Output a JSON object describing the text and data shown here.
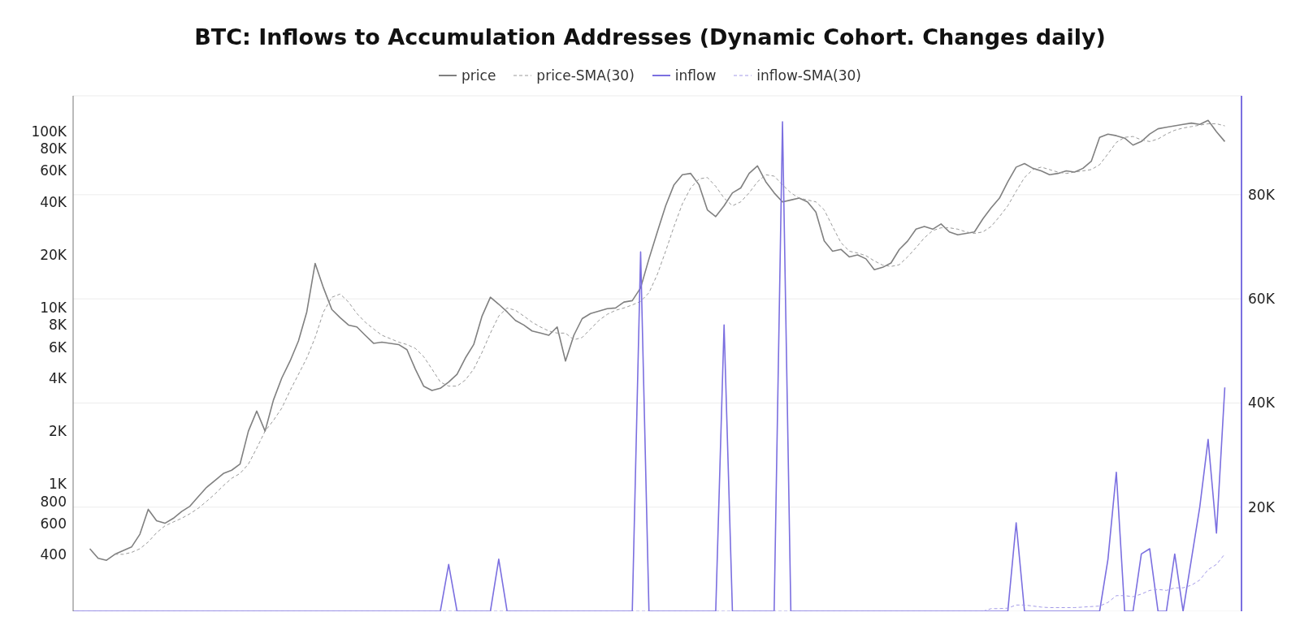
{
  "chart_data": {
    "type": "line",
    "title": "BTC: Inflows to Accumulation Addresses (Dynamic Cohort. Changes daily)",
    "categories": [
      null,
      null,
      null,
      null,
      null,
      null,
      null,
      null,
      null,
      null,
      null,
      null,
      null,
      null,
      null,
      null,
      null,
      null,
      null,
      null,
      null,
      null,
      null,
      null,
      null,
      null,
      null,
      null,
      null,
      null,
      null,
      null,
      null,
      null,
      null,
      null,
      null,
      null,
      null,
      null,
      null,
      null,
      null,
      null,
      null,
      null,
      null,
      null,
      null,
      null,
      null,
      null,
      null,
      null,
      null,
      null,
      null,
      null,
      null,
      null,
      null,
      null,
      null,
      null,
      null,
      null,
      null,
      null,
      null,
      null,
      null,
      null,
      null,
      null,
      null,
      null,
      null,
      null,
      null,
      null,
      null,
      null,
      null,
      null,
      null,
      null,
      null,
      null,
      null,
      null,
      null,
      null,
      null,
      null,
      null,
      null,
      null,
      null,
      null,
      null,
      null,
      null,
      null,
      null,
      null,
      null,
      null,
      null,
      null,
      null,
      null,
      null,
      null,
      null,
      null,
      null,
      null,
      null,
      null,
      null,
      null,
      null,
      null,
      null,
      null,
      null,
      null,
      null,
      null,
      null,
      null,
      null,
      null,
      null,
      null,
      null,
      null,
      null,
      null,
      null,
      null
    ],
    "series": [
      {
        "name": "price",
        "color": "#808080",
        "line_style": "solid",
        "values": [
          null,
          null,
          430,
          380,
          370,
          400,
          420,
          440,
          520,
          720,
          620,
          600,
          640,
          700,
          750,
          850,
          960,
          1050,
          1150,
          1200,
          1300,
          2000,
          2600,
          2000,
          3000,
          4000,
          5000,
          6500,
          9500,
          17900,
          13000,
          9800,
          8800,
          8000,
          7800,
          7000,
          6300,
          6400,
          6300,
          6200,
          5800,
          4500,
          3600,
          3400,
          3500,
          3800,
          4200,
          5200,
          6200,
          9000,
          11500,
          10500,
          9500,
          8500,
          8000,
          7400,
          7200,
          7000,
          7800,
          5000,
          7000,
          8700,
          9300,
          9600,
          9900,
          10000,
          10800,
          11000,
          13000,
          19000,
          27000,
          38000,
          50000,
          57000,
          58000,
          50000,
          36000,
          33000,
          38000,
          45000,
          48000,
          58000,
          64000,
          52000,
          45000,
          40000,
          41000,
          42000,
          40000,
          35000,
          24000,
          21000,
          21500,
          19500,
          20000,
          19000,
          16500,
          17000,
          18000,
          21500,
          24000,
          28000,
          29000,
          28000,
          30000,
          27000,
          26000,
          26500,
          27000,
          32000,
          37000,
          42000,
          52000,
          63000,
          66000,
          62000,
          60000,
          57000,
          58000,
          60000,
          59000,
          62000,
          68000,
          93000,
          97000,
          95000,
          92000,
          84000,
          88000,
          97000,
          104000,
          106000,
          108000,
          110000,
          112000,
          110000,
          116000,
          100000,
          88000,
          null,
          null
        ]
      },
      {
        "name": "price-SMA(30)",
        "color": "#9a9a9a",
        "line_style": "dashed",
        "values": [
          null,
          null,
          null,
          null,
          null,
          400,
          400,
          410,
          430,
          470,
          530,
          580,
          610,
          640,
          680,
          730,
          800,
          880,
          980,
          1080,
          1150,
          1300,
          1600,
          2000,
          2300,
          2700,
          3400,
          4200,
          5200,
          6800,
          9500,
          11500,
          12000,
          10800,
          9300,
          8300,
          7600,
          7000,
          6700,
          6400,
          6200,
          5900,
          5300,
          4500,
          3800,
          3600,
          3600,
          3900,
          4500,
          5600,
          7200,
          9000,
          10000,
          9700,
          9000,
          8300,
          7800,
          7400,
          7200,
          7200,
          6600,
          6800,
          7600,
          8500,
          9200,
          9700,
          10000,
          10400,
          10900,
          12200,
          15500,
          21000,
          29000,
          39000,
          48000,
          54000,
          55000,
          49000,
          42000,
          38000,
          40000,
          45000,
          52000,
          57000,
          56000,
          50000,
          45000,
          42000,
          41000,
          40000,
          36000,
          29000,
          23500,
          21000,
          20500,
          19800,
          18500,
          17500,
          17200,
          17600,
          19500,
          22000,
          25000,
          27500,
          28500,
          28500,
          28000,
          27000,
          26500,
          27000,
          29000,
          33000,
          38000,
          46000,
          55000,
          61000,
          63000,
          61000,
          59000,
          58000,
          59000,
          60000,
          61000,
          65000,
          75000,
          87000,
          93000,
          94000,
          90000,
          88000,
          91000,
          97000,
          102000,
          105000,
          107000,
          109000,
          111000,
          111000,
          108000,
          null,
          null
        ]
      },
      {
        "name": "inflow",
        "color": "#7b6fe0",
        "line_style": "solid",
        "axis": "y2",
        "values": [
          0,
          0,
          0,
          0,
          0,
          0,
          0,
          0,
          0,
          0,
          0,
          0,
          0,
          0,
          0,
          0,
          0,
          0,
          0,
          0,
          0,
          0,
          0,
          0,
          0,
          0,
          0,
          0,
          0,
          0,
          0,
          0,
          0,
          0,
          0,
          0,
          0,
          0,
          0,
          0,
          0,
          0,
          0,
          0,
          0,
          9000,
          0,
          0,
          0,
          0,
          0,
          10000,
          0,
          0,
          0,
          0,
          0,
          0,
          0,
          0,
          0,
          0,
          0,
          0,
          0,
          0,
          0,
          0,
          69000,
          0,
          0,
          0,
          0,
          0,
          0,
          0,
          0,
          0,
          55000,
          0,
          0,
          0,
          0,
          0,
          0,
          94000,
          0,
          0,
          0,
          0,
          0,
          0,
          0,
          0,
          0,
          0,
          0,
          0,
          0,
          0,
          0,
          0,
          0,
          0,
          0,
          0,
          0,
          0,
          0,
          0,
          0,
          0,
          0,
          17000,
          0,
          0,
          0,
          0,
          0,
          0,
          0,
          0,
          0,
          0,
          10000,
          26700,
          0,
          0,
          11000,
          12000,
          0,
          0,
          11000,
          0,
          10000,
          20000,
          33000,
          15000,
          43000,
          null,
          null
        ]
      },
      {
        "name": "inflow-SMA(30)",
        "color": "#a39ae8",
        "line_style": "dashed",
        "axis": "y2",
        "values": [
          0,
          0,
          0,
          0,
          0,
          0,
          0,
          0,
          0,
          0,
          0,
          0,
          0,
          0,
          0,
          0,
          0,
          0,
          0,
          0,
          0,
          0,
          0,
          0,
          0,
          0,
          0,
          0,
          0,
          0,
          0,
          0,
          0,
          0,
          0,
          0,
          0,
          0,
          0,
          0,
          0,
          0,
          0,
          0,
          0,
          0,
          0,
          0,
          0,
          0,
          0,
          0,
          0,
          0,
          0,
          0,
          0,
          0,
          0,
          0,
          0,
          0,
          0,
          0,
          0,
          0,
          0,
          0,
          0,
          0,
          0,
          0,
          0,
          0,
          0,
          0,
          0,
          0,
          0,
          0,
          0,
          0,
          0,
          0,
          0,
          0,
          0,
          0,
          0,
          0,
          0,
          0,
          0,
          0,
          0,
          0,
          0,
          0,
          0,
          0,
          0,
          0,
          0,
          0,
          0,
          0,
          0,
          0,
          0,
          0,
          500,
          500,
          600,
          1200,
          1200,
          1000,
          800,
          700,
          700,
          700,
          700,
          800,
          900,
          1000,
          1700,
          3000,
          3000,
          2800,
          3300,
          4000,
          4200,
          4000,
          4500,
          4500,
          5000,
          6000,
          8000,
          9000,
          11000,
          null,
          null
        ]
      }
    ],
    "log": "y",
    "ylim": [
      190,
      160000
    ],
    "yticks": [
      400,
      600,
      800,
      {
        "value": 1000,
        "label": "1K"
      },
      {
        "value": 2000,
        "label": "2K"
      },
      {
        "value": 4000,
        "label": "4K"
      },
      {
        "value": 6000,
        "label": "6K"
      },
      {
        "value": 8000,
        "label": "8K"
      },
      {
        "value": 10000,
        "label": "10K"
      },
      {
        "value": 20000,
        "label": "20K"
      },
      {
        "value": 40000,
        "label": "40K"
      },
      {
        "value": 60000,
        "label": "60K"
      },
      {
        "value": 80000,
        "label": "80K"
      },
      {
        "value": 100000,
        "label": "100K"
      }
    ],
    "y2lim": [
      0,
      99000
    ],
    "y2ticks": [
      {
        "value": 20000,
        "label": "20K"
      },
      {
        "value": 40000,
        "label": "40K"
      },
      {
        "value": 60000,
        "label": "60K"
      },
      {
        "value": 80000,
        "label": "80K"
      }
    ],
    "grid": "y",
    "legend": "top"
  }
}
